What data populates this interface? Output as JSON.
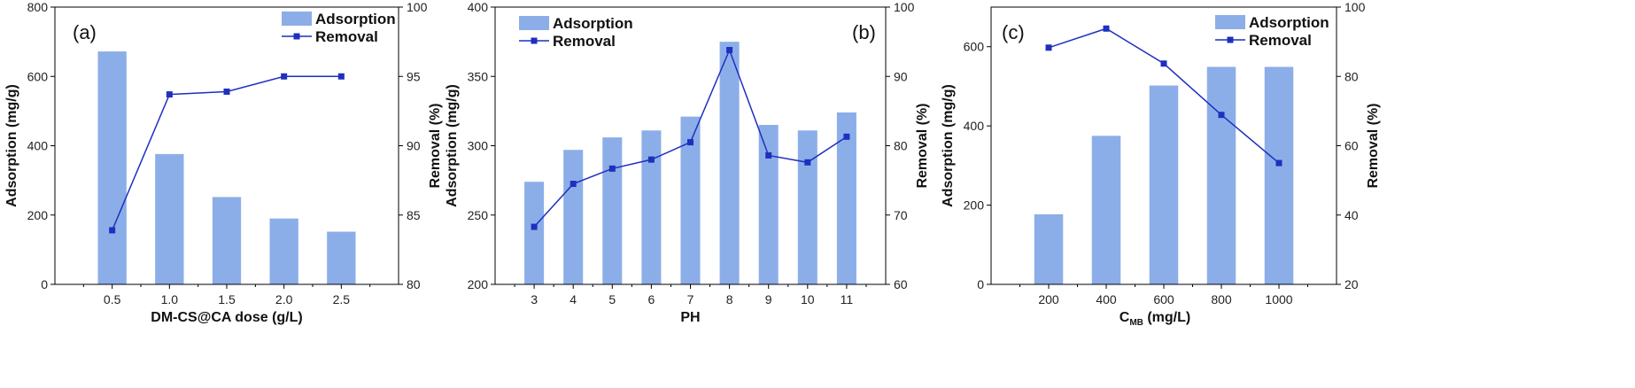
{
  "colors": {
    "bar": "#8caee8",
    "line": "#1f2fbf",
    "axis": "#000000"
  },
  "chart_data": [
    {
      "type": "bar",
      "panel_label": "(a)",
      "legend": {
        "bar": "Adsorption",
        "line": "Removal",
        "position": "top-right"
      },
      "categories": [
        "0.5",
        "1.0",
        "1.5",
        "2.0",
        "2.5"
      ],
      "series": [
        {
          "name": "Adsorption",
          "axis": "left",
          "kind": "bar",
          "values": [
            672,
            376,
            252,
            190,
            152
          ]
        },
        {
          "name": "Removal",
          "axis": "right",
          "kind": "line",
          "values": [
            83.9,
            93.7,
            93.9,
            95.0,
            95.0
          ]
        }
      ],
      "xlabel": "DM-CS@CA dose (g/L)",
      "ylabel": "Adsorption (mg/g)",
      "ylabel_right": "Removal (%)",
      "ylim": [
        0,
        800
      ],
      "ylim_right": [
        80,
        100
      ],
      "yticks": [
        "0",
        "200",
        "400",
        "600",
        "800"
      ],
      "yticks_right": [
        "80",
        "85",
        "90",
        "95",
        "100"
      ]
    },
    {
      "type": "bar",
      "panel_label": "(b)",
      "legend": {
        "bar": "Adsorption",
        "line": "Removal",
        "position": "top-left"
      },
      "categories": [
        "3",
        "4",
        "5",
        "6",
        "7",
        "8",
        "9",
        "10",
        "11"
      ],
      "series": [
        {
          "name": "Adsorption",
          "axis": "left",
          "kind": "bar",
          "values": [
            274,
            297,
            306,
            311,
            321,
            375,
            315,
            311,
            324
          ]
        },
        {
          "name": "Removal",
          "axis": "right",
          "kind": "line",
          "values": [
            68.3,
            74.5,
            76.7,
            78.0,
            80.5,
            93.8,
            78.6,
            77.6,
            81.3
          ]
        }
      ],
      "xlabel": "PH",
      "ylabel": "Adsorption (mg/g)",
      "ylabel_right": "Removal (%)",
      "ylim": [
        200,
        400
      ],
      "ylim_right": [
        60,
        100
      ],
      "yticks": [
        "200",
        "250",
        "300",
        "350",
        "400"
      ],
      "yticks_right": [
        "60",
        "70",
        "80",
        "90",
        "100"
      ]
    },
    {
      "type": "bar",
      "panel_label": "(c)",
      "legend": {
        "bar": "Adsorption",
        "line": "Removal",
        "position": "top-right"
      },
      "categories": [
        "200",
        "400",
        "600",
        "800",
        "1000"
      ],
      "series": [
        {
          "name": "Adsorption",
          "axis": "left",
          "kind": "bar",
          "values": [
            177,
            375,
            502,
            549,
            549
          ]
        },
        {
          "name": "Removal",
          "axis": "right",
          "kind": "line",
          "values": [
            88.3,
            93.8,
            83.7,
            68.9,
            55.0
          ]
        }
      ],
      "xlabel_main": "C",
      "xlabel_sub": "MB",
      "xlabel_unit": "  (mg/L)",
      "ylabel": "Adsorption (mg/g)",
      "ylabel_right": "Removal (%)",
      "ylim": [
        0,
        700
      ],
      "ylim_right": [
        20,
        100
      ],
      "yticks": [
        "0",
        "200",
        "400",
        "600"
      ],
      "yticks_right": [
        "20",
        "40",
        "60",
        "80",
        "100"
      ]
    }
  ]
}
